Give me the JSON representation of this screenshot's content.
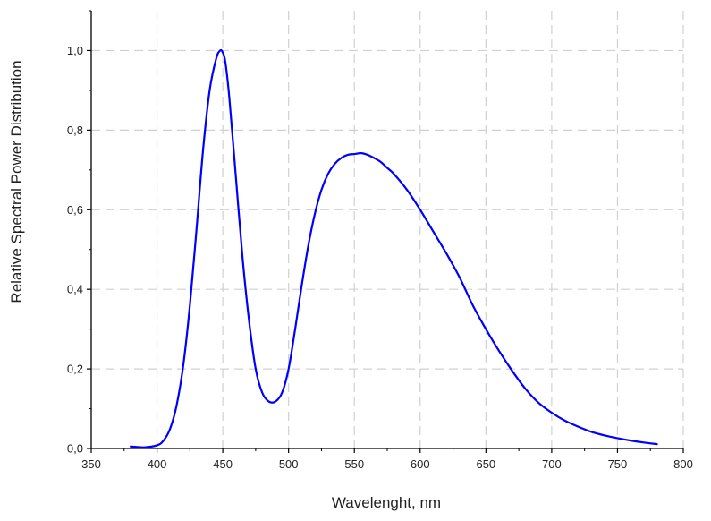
{
  "chart_data": {
    "type": "line",
    "title": "",
    "xlabel": "Wavelenght, nm",
    "ylabel": "Relative Spectral Power Distribution",
    "xlim": [
      350,
      800
    ],
    "ylim": [
      0.0,
      1.1
    ],
    "grid": true,
    "x_ticks": [
      350,
      400,
      450,
      500,
      550,
      600,
      650,
      700,
      750,
      800
    ],
    "y_ticks": [
      0.0,
      0.2,
      0.4,
      0.6,
      0.8,
      1.0
    ],
    "x_tick_labels": [
      "350",
      "400",
      "450",
      "500",
      "550",
      "600",
      "650",
      "700",
      "750",
      "800"
    ],
    "y_tick_labels": [
      "0,0",
      "0,2",
      "0,4",
      "0,6",
      "0,8",
      "1,0"
    ],
    "series": [
      {
        "color": "#0000ff",
        "x": [
          380,
          390,
          400,
          405,
          410,
          415,
          420,
          425,
          430,
          435,
          440,
          445,
          448,
          450,
          452,
          455,
          460,
          465,
          470,
          475,
          480,
          485,
          490,
          495,
          500,
          505,
          510,
          515,
          520,
          525,
          530,
          535,
          540,
          545,
          550,
          555,
          560,
          565,
          570,
          575,
          580,
          590,
          600,
          610,
          620,
          630,
          640,
          650,
          660,
          670,
          680,
          690,
          700,
          710,
          720,
          730,
          740,
          750,
          760,
          770,
          780
        ],
        "y": [
          0.005,
          0.003,
          0.008,
          0.02,
          0.05,
          0.11,
          0.21,
          0.36,
          0.55,
          0.75,
          0.9,
          0.98,
          1.0,
          0.995,
          0.97,
          0.88,
          0.68,
          0.48,
          0.32,
          0.2,
          0.14,
          0.118,
          0.118,
          0.14,
          0.2,
          0.3,
          0.41,
          0.51,
          0.59,
          0.65,
          0.69,
          0.715,
          0.73,
          0.738,
          0.74,
          0.742,
          0.738,
          0.73,
          0.72,
          0.705,
          0.69,
          0.65,
          0.6,
          0.545,
          0.49,
          0.43,
          0.36,
          0.3,
          0.245,
          0.195,
          0.15,
          0.115,
          0.09,
          0.07,
          0.055,
          0.042,
          0.033,
          0.026,
          0.02,
          0.015,
          0.011
        ]
      }
    ]
  }
}
